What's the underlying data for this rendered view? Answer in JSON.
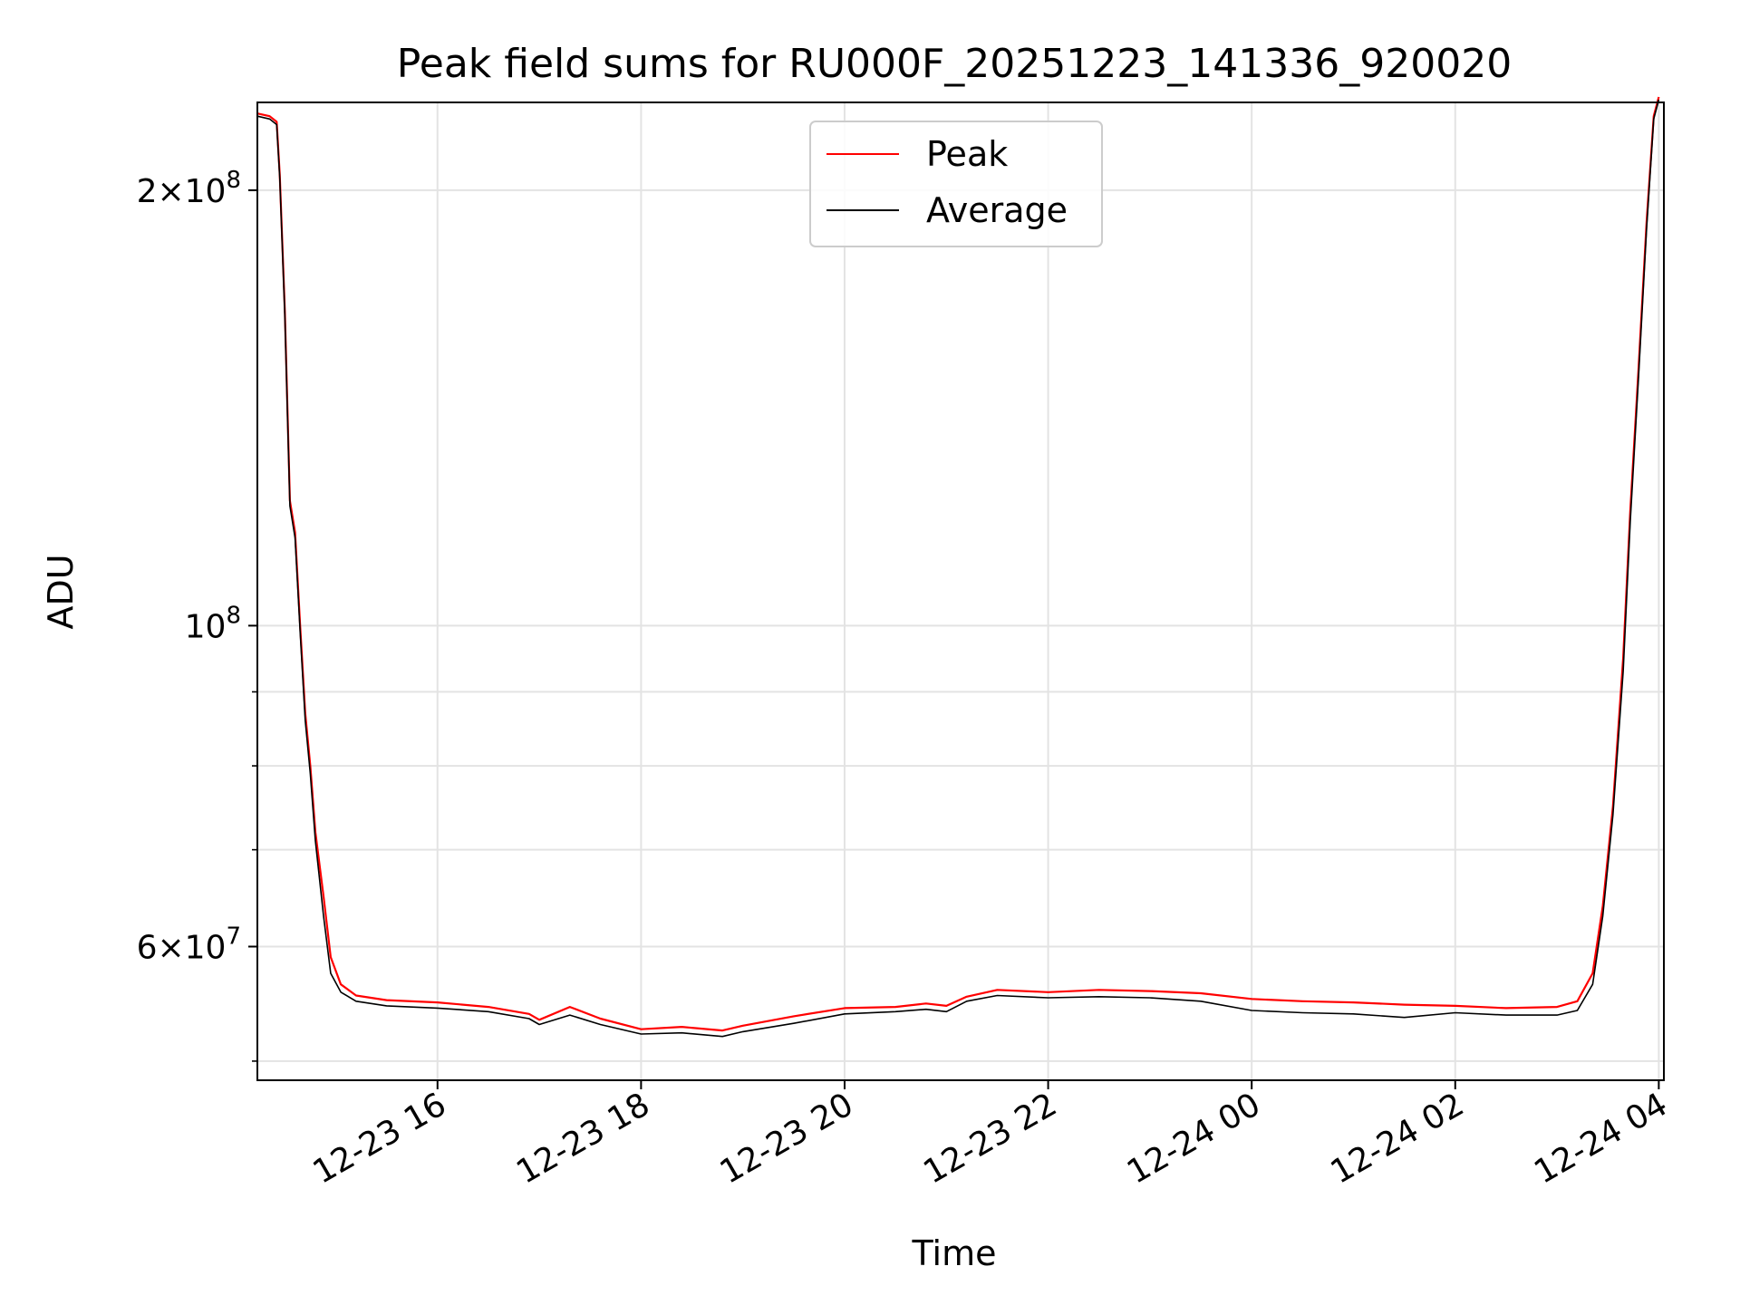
{
  "chart_data": {
    "type": "line",
    "title": "Peak field sums for RU000F_20251223_141336_920020",
    "xlabel": "Time",
    "ylabel": "ADU",
    "yscale": "log",
    "grid": true,
    "legend_position": "top-center",
    "x_unit": "hours since 12-23 00:00",
    "xlim": [
      14.23,
      28.05
    ],
    "ylim": [
      48500000,
      230000000
    ],
    "x_ticks": [
      {
        "value": 16,
        "label": "12-23 16"
      },
      {
        "value": 18,
        "label": "12-23 18"
      },
      {
        "value": 20,
        "label": "12-23 20"
      },
      {
        "value": 22,
        "label": "12-23 22"
      },
      {
        "value": 24,
        "label": "12-24 00"
      },
      {
        "value": 26,
        "label": "12-24 02"
      },
      {
        "value": 28,
        "label": "12-24 04"
      }
    ],
    "y_ticks": [
      {
        "value": 60000000,
        "mantissa": "6",
        "base": "10",
        "exp": "7"
      },
      {
        "value": 100000000,
        "mantissa": "",
        "base": "10",
        "exp": "8"
      },
      {
        "value": 200000000,
        "mantissa": "2",
        "base": "10",
        "exp": "8"
      }
    ],
    "y_minor_ticks": [
      50000000,
      70000000,
      80000000,
      90000000
    ],
    "series": [
      {
        "name": "Peak",
        "color": "#ff0000",
        "x": [
          14.23,
          14.35,
          14.42,
          14.45,
          14.5,
          14.55,
          14.6,
          14.65,
          14.7,
          14.75,
          14.8,
          14.88,
          14.95,
          15.05,
          15.2,
          15.5,
          16.0,
          16.5,
          16.9,
          17.0,
          17.3,
          17.6,
          18.0,
          18.4,
          18.8,
          19.0,
          19.5,
          20.0,
          20.5,
          20.8,
          21.0,
          21.2,
          21.5,
          22.0,
          22.5,
          23.0,
          23.5,
          24.0,
          24.5,
          25.0,
          25.5,
          26.0,
          26.5,
          27.0,
          27.2,
          27.35,
          27.45,
          27.55,
          27.65,
          27.72,
          27.8,
          27.88,
          27.95,
          28.0
        ],
        "values": [
          226000000,
          225000000,
          223000000,
          205000000,
          165000000,
          122000000,
          116000000,
          100000000,
          87000000,
          80000000,
          72000000,
          65000000,
          59000000,
          56500000,
          55500000,
          55100000,
          54900000,
          54500000,
          53900000,
          53400000,
          54500000,
          53500000,
          52600000,
          52800000,
          52500000,
          52900000,
          53700000,
          54400000,
          54500000,
          54800000,
          54600000,
          55400000,
          56000000,
          55800000,
          56000000,
          55900000,
          55700000,
          55200000,
          55000000,
          54900000,
          54700000,
          54600000,
          54400000,
          54500000,
          55000000,
          57500000,
          64000000,
          75000000,
          95000000,
          120000000,
          150000000,
          190000000,
          225000000,
          232000000
        ]
      },
      {
        "name": "Average",
        "color": "#000000",
        "x": [
          14.23,
          14.35,
          14.42,
          14.45,
          14.5,
          14.55,
          14.6,
          14.65,
          14.7,
          14.75,
          14.8,
          14.88,
          14.95,
          15.05,
          15.2,
          15.5,
          16.0,
          16.5,
          16.9,
          17.0,
          17.3,
          17.6,
          18.0,
          18.4,
          18.8,
          19.0,
          19.5,
          20.0,
          20.5,
          20.8,
          21.0,
          21.2,
          21.5,
          22.0,
          22.5,
          23.0,
          23.5,
          24.0,
          24.5,
          25.0,
          25.5,
          26.0,
          26.5,
          27.0,
          27.2,
          27.35,
          27.45,
          27.55,
          27.65,
          27.72,
          27.8,
          27.88,
          27.95,
          28.0
        ],
        "values": [
          225000000,
          224000000,
          222000000,
          204000000,
          164000000,
          121000000,
          115000000,
          99000000,
          86000000,
          79000000,
          71000000,
          63000000,
          57500000,
          55800000,
          55000000,
          54600000,
          54400000,
          54100000,
          53500000,
          53000000,
          53800000,
          53000000,
          52200000,
          52300000,
          52000000,
          52400000,
          53100000,
          53900000,
          54100000,
          54300000,
          54100000,
          55000000,
          55500000,
          55300000,
          55400000,
          55300000,
          55000000,
          54200000,
          54000000,
          53900000,
          53600000,
          54000000,
          53800000,
          53800000,
          54200000,
          56500000,
          63000000,
          74000000,
          93000000,
          118000000,
          148000000,
          188000000,
          224000000,
          231000000
        ]
      }
    ],
    "legend": [
      {
        "label": "Peak",
        "color": "#ff0000"
      },
      {
        "label": "Average",
        "color": "#000000"
      }
    ]
  }
}
